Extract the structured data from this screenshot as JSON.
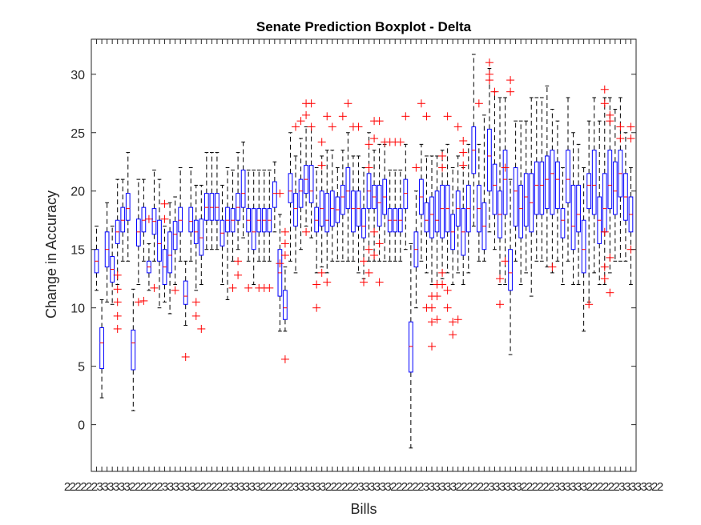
{
  "chart_data": {
    "type": "boxplot",
    "title": "Senate Prediction Boxplot - Delta",
    "xlabel": "Bills",
    "ylabel": "Change in Accuracy",
    "ylim": [
      -4,
      33
    ],
    "yticks": [
      0,
      5,
      10,
      15,
      20,
      25,
      30
    ],
    "grid": false,
    "legend": "none",
    "colors": {
      "box": "#0000ff",
      "median": "#ff0000",
      "whisker": "#000000",
      "outlier": "#ff0000",
      "axis": "#262626"
    },
    "category_tick_labels": [
      "2",
      "2",
      "2",
      "2",
      "2",
      "2",
      "3",
      "3",
      "3",
      "3",
      "3",
      "3"
    ],
    "boxes": [
      {
        "wl": 11.5,
        "q1": 13,
        "med": 14,
        "q3": 15,
        "wh": 17,
        "out": []
      },
      {
        "wl": 2.3,
        "q1": 4.8,
        "med": 7,
        "q3": 8.3,
        "wh": 10.7,
        "out": []
      },
      {
        "wl": 10.5,
        "q1": 13.5,
        "med": 15,
        "q3": 16.5,
        "wh": 19,
        "out": []
      },
      {
        "wl": 10.3,
        "q1": 12.2,
        "med": 13.3,
        "q3": 14.4,
        "wh": 17,
        "out": []
      },
      {
        "wl": 12,
        "q1": 15.5,
        "med": 16.5,
        "q3": 17.5,
        "wh": 21,
        "out": [
          8.2,
          9.3,
          10.5,
          11.6,
          12.8
        ]
      },
      {
        "wl": 14,
        "q1": 16.5,
        "med": 17.5,
        "q3": 18.6,
        "wh": 21,
        "out": []
      },
      {
        "wl": 14,
        "q1": 17.5,
        "med": 18.5,
        "q3": 19.8,
        "wh": 23.3,
        "out": []
      },
      {
        "wl": 1.2,
        "q1": 4.7,
        "med": 7,
        "q3": 8.1,
        "wh": 11.6,
        "out": []
      },
      {
        "wl": 12,
        "q1": 15.3,
        "med": 16.5,
        "q3": 17.6,
        "wh": 21,
        "out": [
          10.5
        ]
      },
      {
        "wl": 14,
        "q1": 16.5,
        "med": 17.5,
        "q3": 18.6,
        "wh": 21,
        "out": [
          10.6
        ]
      },
      {
        "wl": 11.5,
        "q1": 13,
        "med": 13.5,
        "q3": 14,
        "wh": 15.5,
        "out": [
          17.6
        ]
      },
      {
        "wl": 14,
        "q1": 16.3,
        "med": 17.4,
        "q3": 18.5,
        "wh": 21.8,
        "out": [
          11.7
        ]
      },
      {
        "wl": 10,
        "q1": 14,
        "med": 15.5,
        "q3": 17.5,
        "wh": 21,
        "out": []
      },
      {
        "wl": 10.5,
        "q1": 12,
        "med": 13.5,
        "q3": 15,
        "wh": 17,
        "out": [
          17.6,
          18.9
        ]
      },
      {
        "wl": 9.5,
        "q1": 13,
        "med": 14.5,
        "q3": 16.5,
        "wh": 19,
        "out": []
      },
      {
        "wl": 12,
        "q1": 15,
        "med": 16.3,
        "q3": 17.4,
        "wh": 19.5,
        "out": [
          11.5
        ]
      },
      {
        "wl": 14,
        "q1": 16.5,
        "med": 17.5,
        "q3": 18.6,
        "wh": 22,
        "out": []
      },
      {
        "wl": 8.5,
        "q1": 10.3,
        "med": 11,
        "q3": 12.3,
        "wh": 14,
        "out": [
          5.8
        ]
      },
      {
        "wl": 14,
        "q1": 16.5,
        "med": 17.4,
        "q3": 18.6,
        "wh": 22,
        "out": []
      },
      {
        "wl": 11.5,
        "q1": 15.5,
        "med": 16.5,
        "q3": 17.5,
        "wh": 20.5,
        "out": [
          9.3,
          10.5
        ]
      },
      {
        "wl": 12,
        "q1": 14.5,
        "med": 16,
        "q3": 17.6,
        "wh": 20.5,
        "out": [
          8.2
        ]
      },
      {
        "wl": 15,
        "q1": 17.5,
        "med": 18.6,
        "q3": 19.8,
        "wh": 23.3,
        "out": []
      },
      {
        "wl": 15,
        "q1": 17.5,
        "med": 18.6,
        "q3": 19.8,
        "wh": 23.3,
        "out": []
      },
      {
        "wl": 15,
        "q1": 17.5,
        "med": 18.6,
        "q3": 19.8,
        "wh": 23.3,
        "out": []
      },
      {
        "wl": 12,
        "q1": 15.3,
        "med": 16.4,
        "q3": 17.5,
        "wh": 20.5,
        "out": []
      },
      {
        "wl": 10.7,
        "q1": 16.5,
        "med": 17.5,
        "q3": 18.6,
        "wh": 22,
        "out": []
      },
      {
        "wl": 14,
        "q1": 16.5,
        "med": 17.5,
        "q3": 18.5,
        "wh": 21.8,
        "out": [
          11.7
        ]
      },
      {
        "wl": 15,
        "q1": 17.5,
        "med": 18.6,
        "q3": 19.8,
        "wh": 23.3,
        "out": [
          12.8,
          14
        ]
      },
      {
        "wl": 16,
        "q1": 18.6,
        "med": 19.8,
        "q3": 21.8,
        "wh": 24.2,
        "out": []
      },
      {
        "wl": 14,
        "q1": 16.5,
        "med": 17.5,
        "q3": 18.5,
        "wh": 21.8,
        "out": [
          11.7
        ]
      },
      {
        "wl": 12,
        "q1": 15,
        "med": 16.5,
        "q3": 18.5,
        "wh": 21.8,
        "out": []
      },
      {
        "wl": 14,
        "q1": 16.5,
        "med": 17.5,
        "q3": 18.5,
        "wh": 21.8,
        "out": [
          11.7
        ]
      },
      {
        "wl": 14,
        "q1": 16.5,
        "med": 17.5,
        "q3": 18.5,
        "wh": 21.8,
        "out": [
          11.7
        ]
      },
      {
        "wl": 14,
        "q1": 16.5,
        "med": 17.5,
        "q3": 18.5,
        "wh": 21.8,
        "out": [
          11.7
        ]
      },
      {
        "wl": 16.5,
        "q1": 18.6,
        "med": 19.8,
        "q3": 20.8,
        "wh": 22.5,
        "out": []
      },
      {
        "wl": 8,
        "q1": 11,
        "med": 13,
        "q3": 15,
        "wh": 18,
        "out": [
          19.8,
          13.8
        ]
      },
      {
        "wl": 8,
        "q1": 9,
        "med": 10,
        "q3": 11.5,
        "wh": 13.5,
        "out": [
          5.6,
          14.5,
          15.5,
          16.5
        ]
      },
      {
        "wl": 14,
        "q1": 19,
        "med": 20,
        "q3": 21.5,
        "wh": 25,
        "out": []
      },
      {
        "wl": 13,
        "q1": 17,
        "med": 18.5,
        "q3": 19.8,
        "wh": 23,
        "out": [
          25.5
        ]
      },
      {
        "wl": 15,
        "q1": 18.6,
        "med": 20,
        "q3": 21,
        "wh": 24.5,
        "out": [
          26
        ]
      },
      {
        "wl": 17,
        "q1": 19.8,
        "med": 21,
        "q3": 22.2,
        "wh": 25.5,
        "out": [
          26.5,
          27.5,
          16.5
        ]
      },
      {
        "wl": 16,
        "q1": 19,
        "med": 20,
        "q3": 22.2,
        "wh": 25.5,
        "out": [
          27.5,
          25.5
        ]
      },
      {
        "wl": 13,
        "q1": 16.5,
        "med": 17.5,
        "q3": 18.6,
        "wh": 22,
        "out": [
          10,
          12
        ]
      },
      {
        "wl": 13.5,
        "q1": 17,
        "med": 18.5,
        "q3": 20,
        "wh": 23,
        "out": [
          24.2,
          22.2,
          13
        ]
      },
      {
        "wl": 13,
        "q1": 16.5,
        "med": 17.5,
        "q3": 19.8,
        "wh": 23.5,
        "out": [
          26.4,
          12.2
        ]
      },
      {
        "wl": 14,
        "q1": 17,
        "med": 18.5,
        "q3": 20,
        "wh": 23.5,
        "out": [
          25.5
        ]
      },
      {
        "wl": 14,
        "q1": 17.3,
        "med": 18.4,
        "q3": 19.5,
        "wh": 22,
        "out": []
      },
      {
        "wl": 14,
        "q1": 18,
        "med": 19.5,
        "q3": 20.5,
        "wh": 23.5,
        "out": [
          26.4
        ]
      },
      {
        "wl": 14,
        "q1": 18.5,
        "med": 20,
        "q3": 22,
        "wh": 25,
        "out": [
          27.5
        ]
      },
      {
        "wl": 14,
        "q1": 16.5,
        "med": 18.5,
        "q3": 20,
        "wh": 23,
        "out": [
          25.5
        ]
      },
      {
        "wl": 13,
        "q1": 17,
        "med": 18.5,
        "q3": 20,
        "wh": 23,
        "out": [
          25.5
        ]
      },
      {
        "wl": 12.5,
        "q1": 16,
        "med": 17,
        "q3": 18.5,
        "wh": 22,
        "out": [
          12.2,
          14
        ]
      },
      {
        "wl": 14,
        "q1": 18.5,
        "med": 20,
        "q3": 21.5,
        "wh": 25,
        "out": [
          22,
          24,
          13,
          15
        ]
      },
      {
        "wl": 14,
        "q1": 18.5,
        "med": 19.5,
        "q3": 20.5,
        "wh": 23.5,
        "out": [
          24.5,
          26,
          14.5,
          16.5
        ]
      },
      {
        "wl": 14,
        "q1": 17,
        "med": 19,
        "q3": 20.5,
        "wh": 24,
        "out": [
          12.2,
          15.5,
          26
        ]
      },
      {
        "wl": 14,
        "q1": 18,
        "med": 19.5,
        "q3": 21,
        "wh": 24,
        "out": [
          24.2
        ]
      },
      {
        "wl": 14,
        "q1": 16.5,
        "med": 17.5,
        "q3": 18.5,
        "wh": 21.8,
        "out": [
          24.2
        ]
      },
      {
        "wl": 14,
        "q1": 16.5,
        "med": 17.5,
        "q3": 18.5,
        "wh": 21.8,
        "out": [
          24.2
        ]
      },
      {
        "wl": 14,
        "q1": 16.5,
        "med": 17.5,
        "q3": 18.5,
        "wh": 21.8,
        "out": [
          24.2
        ]
      },
      {
        "wl": 15,
        "q1": 18.5,
        "med": 19.8,
        "q3": 21,
        "wh": 24,
        "out": [
          26.4
        ]
      },
      {
        "wl": -2,
        "q1": 4.5,
        "med": 6.7,
        "q3": 8.8,
        "wh": 15.5,
        "out": []
      },
      {
        "wl": 10,
        "q1": 13.5,
        "med": 15,
        "q3": 16.5,
        "wh": 20,
        "out": [
          22
        ]
      },
      {
        "wl": 14,
        "q1": 18,
        "med": 19.5,
        "q3": 21,
        "wh": 24,
        "out": [
          27.5
        ]
      },
      {
        "wl": 13,
        "q1": 16.5,
        "med": 17.5,
        "q3": 19,
        "wh": 23,
        "out": [
          26.4,
          10
        ]
      },
      {
        "wl": 12,
        "q1": 16,
        "med": 18,
        "q3": 19.5,
        "wh": 23,
        "out": [
          6.7,
          8.8,
          10,
          11
        ]
      },
      {
        "wl": 12,
        "q1": 16.5,
        "med": 17.5,
        "q3": 20,
        "wh": 23,
        "out": [
          12,
          9,
          11
        ]
      },
      {
        "wl": 12.5,
        "q1": 16,
        "med": 18.5,
        "q3": 20.5,
        "wh": 23.5,
        "out": [
          22,
          23,
          13,
          12
        ]
      },
      {
        "wl": 13,
        "q1": 16.5,
        "med": 18.5,
        "q3": 20.5,
        "wh": 24,
        "out": [
          26.4,
          10,
          11.5
        ]
      },
      {
        "wl": 12,
        "q1": 15,
        "med": 16.5,
        "q3": 18,
        "wh": 22,
        "out": [
          8.8,
          7.7
        ]
      },
      {
        "wl": 13,
        "q1": 17,
        "med": 18.5,
        "q3": 20,
        "wh": 23,
        "out": [
          25.5,
          9
        ]
      },
      {
        "wl": 12,
        "q1": 14.5,
        "med": 16.5,
        "q3": 18.5,
        "wh": 22,
        "out": [
          22.2,
          23.3,
          24.3
        ]
      },
      {
        "wl": 13,
        "q1": 16.5,
        "med": 18.5,
        "q3": 20.5,
        "wh": 24,
        "out": []
      },
      {
        "wl": 17,
        "q1": 21.5,
        "med": 23.5,
        "q3": 25.5,
        "wh": 31.7,
        "out": []
      },
      {
        "wl": 14,
        "q1": 16.5,
        "med": 18.5,
        "q3": 20.5,
        "wh": 24,
        "out": [
          27.5
        ]
      },
      {
        "wl": 14,
        "q1": 15,
        "med": 17,
        "q3": 19,
        "wh": 26.5,
        "out": []
      },
      {
        "wl": 16.5,
        "q1": 20,
        "med": 23,
        "q3": 25.3,
        "wh": 30.5,
        "out": [
          30,
          31,
          29.5
        ]
      },
      {
        "wl": 15,
        "q1": 18,
        "med": 20.5,
        "q3": 22.3,
        "wh": 28.5,
        "out": [
          28.5
        ]
      },
      {
        "wl": 12,
        "q1": 16,
        "med": 18,
        "q3": 20,
        "wh": 28,
        "out": [
          12.5,
          10.3
        ]
      },
      {
        "wl": 12,
        "q1": 18,
        "med": 21,
        "q3": 23.5,
        "wh": 28,
        "out": [
          22,
          14
        ]
      },
      {
        "wl": 6,
        "q1": 11.5,
        "med": 13,
        "q3": 15,
        "wh": 21,
        "out": [
          29.5,
          28.5
        ]
      },
      {
        "wl": 14,
        "q1": 17,
        "med": 20,
        "q3": 22,
        "wh": 26,
        "out": []
      },
      {
        "wl": 12,
        "q1": 16,
        "med": 18.5,
        "q3": 20.5,
        "wh": 26,
        "out": []
      },
      {
        "wl": 13,
        "q1": 17,
        "med": 19.5,
        "q3": 21.5,
        "wh": 26,
        "out": []
      },
      {
        "wl": 11,
        "q1": 16.5,
        "med": 19,
        "q3": 21.5,
        "wh": 28,
        "out": []
      },
      {
        "wl": 14,
        "q1": 18,
        "med": 20.5,
        "q3": 22.5,
        "wh": 28,
        "out": []
      },
      {
        "wl": 14,
        "q1": 18,
        "med": 20.5,
        "q3": 22.5,
        "wh": 28,
        "out": []
      },
      {
        "wl": 13.5,
        "q1": 18.5,
        "med": 21,
        "q3": 23,
        "wh": 29,
        "out": []
      },
      {
        "wl": 13,
        "q1": 18,
        "med": 21.5,
        "q3": 23.5,
        "wh": 27,
        "out": [
          13.5
        ]
      },
      {
        "wl": 14,
        "q1": 18.5,
        "med": 21,
        "q3": 22.5,
        "wh": 26,
        "out": []
      },
      {
        "wl": 12,
        "q1": 16,
        "med": 17.5,
        "q3": 18.5,
        "wh": 22,
        "out": []
      },
      {
        "wl": 14,
        "q1": 19,
        "med": 21,
        "q3": 23.5,
        "wh": 28,
        "out": []
      },
      {
        "wl": 12,
        "q1": 15,
        "med": 17,
        "q3": 20.5,
        "wh": 25,
        "out": []
      },
      {
        "wl": 12,
        "q1": 16.5,
        "med": 18,
        "q3": 20.5,
        "wh": 24,
        "out": []
      },
      {
        "wl": 8,
        "q1": 13,
        "med": 15,
        "q3": 17.5,
        "wh": 22,
        "out": []
      },
      {
        "wl": 10.5,
        "q1": 18.5,
        "med": 20.5,
        "q3": 21.5,
        "wh": 26,
        "out": [
          10.3
        ]
      },
      {
        "wl": 13,
        "q1": 18,
        "med": 20.5,
        "q3": 23.5,
        "wh": 28,
        "out": []
      },
      {
        "wl": 12,
        "q1": 15.5,
        "med": 17.5,
        "q3": 19.5,
        "wh": 26,
        "out": []
      },
      {
        "wl": 12,
        "q1": 16.5,
        "med": 18.5,
        "q3": 21.5,
        "wh": 28,
        "out": [
          12.5,
          13.5,
          16.5,
          27.5,
          28.7
        ]
      },
      {
        "wl": 13,
        "q1": 18.5,
        "med": 20.5,
        "q3": 23.5,
        "wh": 28,
        "out": [
          26,
          11.3,
          14.3,
          26.5
        ]
      },
      {
        "wl": 14,
        "q1": 18,
        "med": 20,
        "q3": 22.5,
        "wh": 27,
        "out": []
      },
      {
        "wl": 14,
        "q1": 19.5,
        "med": 21.5,
        "q3": 23.5,
        "wh": 28,
        "out": [
          24.5,
          25.5
        ]
      },
      {
        "wl": 14,
        "q1": 17.5,
        "med": 19.5,
        "q3": 21.5,
        "wh": 25,
        "out": []
      },
      {
        "wl": 12,
        "q1": 16.5,
        "med": 18,
        "q3": 19.5,
        "wh": 22,
        "out": [
          24.5,
          25.5,
          15
        ]
      }
    ]
  }
}
